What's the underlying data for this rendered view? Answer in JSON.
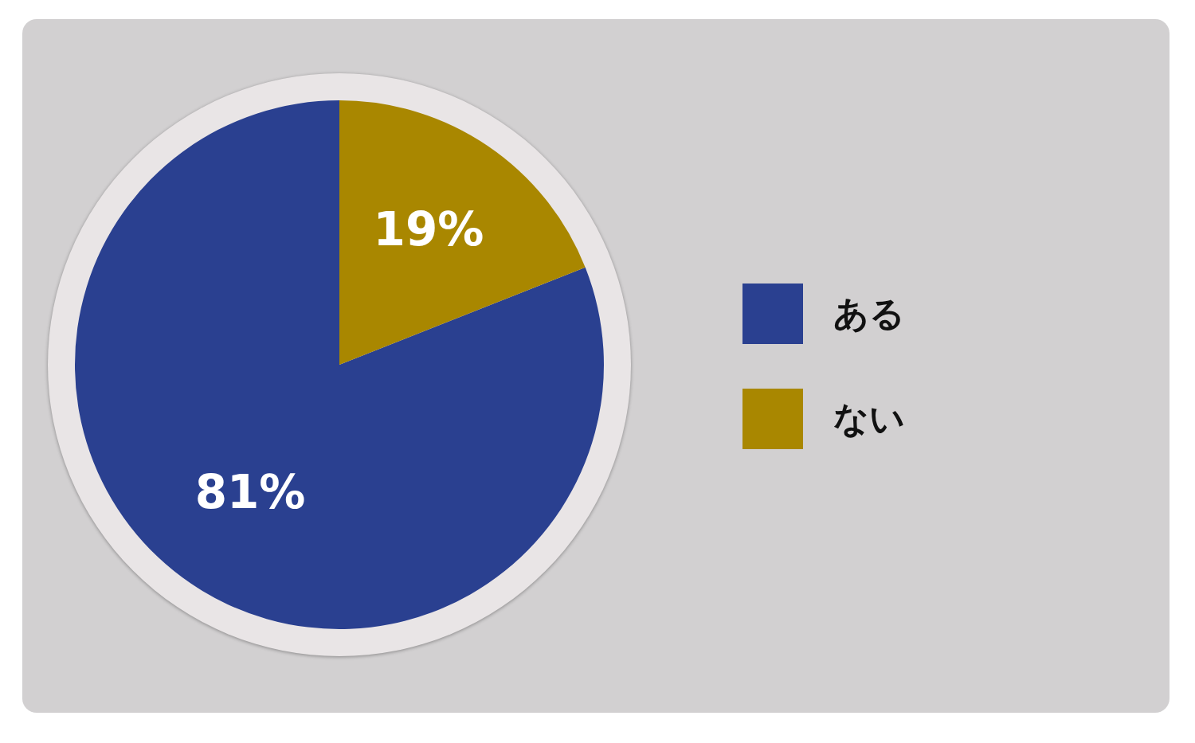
{
  "chart_data": {
    "type": "pie",
    "categories": [
      "ある",
      "ない"
    ],
    "values": [
      81,
      19
    ],
    "colors": [
      "#2a4090",
      "#a98700"
    ],
    "value_labels": [
      "81%",
      "19%"
    ],
    "legend": "right"
  }
}
